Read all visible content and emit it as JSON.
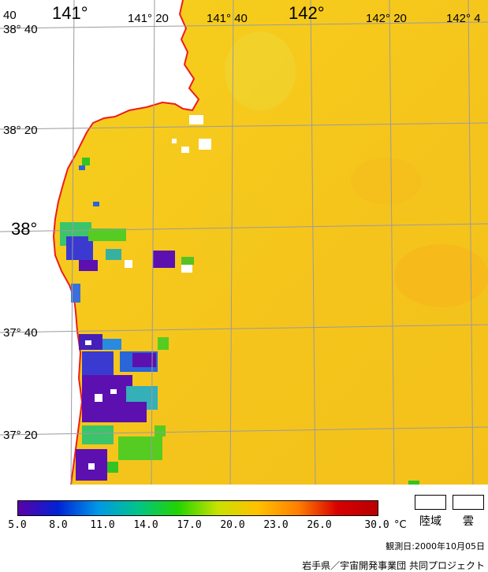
{
  "map": {
    "lat_labels": [
      {
        "text": "38° 40",
        "lat": 38.6667
      },
      {
        "text": "38° 20",
        "lat": 38.3333
      },
      {
        "text": "38°",
        "lat": 38.0,
        "major": true
      },
      {
        "text": "37° 40",
        "lat": 37.6667
      },
      {
        "text": "37° 20",
        "lat": 37.3333
      }
    ],
    "lon_labels": [
      {
        "text": "141°",
        "lon": 141.0,
        "major": true
      },
      {
        "text": "141° 20",
        "lon": 141.3333
      },
      {
        "text": "141° 40",
        "lon": 141.6667
      },
      {
        "text": "142°",
        "lon": 142.0,
        "major": true
      },
      {
        "text": "142° 20",
        "lon": 142.3333
      },
      {
        "text": "142° 4",
        "lon": 142.6667
      }
    ],
    "corner_label": "40",
    "colors": {
      "coast": "#ee1c1c",
      "grid": "#9a9aa2",
      "sea": "#f5c81a",
      "land": "#ffffff"
    }
  },
  "legend": {
    "ticks": [
      "5.0",
      "8.0",
      "11.0",
      "14.0",
      "17.0",
      "20.0",
      "23.0",
      "26.0",
      "30.0"
    ],
    "unit": "°C",
    "land_label": "陸域",
    "cloud_label": "雲",
    "colors": [
      "#5c00a8",
      "#0022d6",
      "#0098e6",
      "#00c48a",
      "#22d400",
      "#c9e100",
      "#ffc100",
      "#ff8000",
      "#d80000",
      "#b80000"
    ]
  },
  "footer": {
    "observation": "観測日:2000年10月05日",
    "credit": "岩手県／宇宙開発事業団  共同プロジェクト"
  }
}
